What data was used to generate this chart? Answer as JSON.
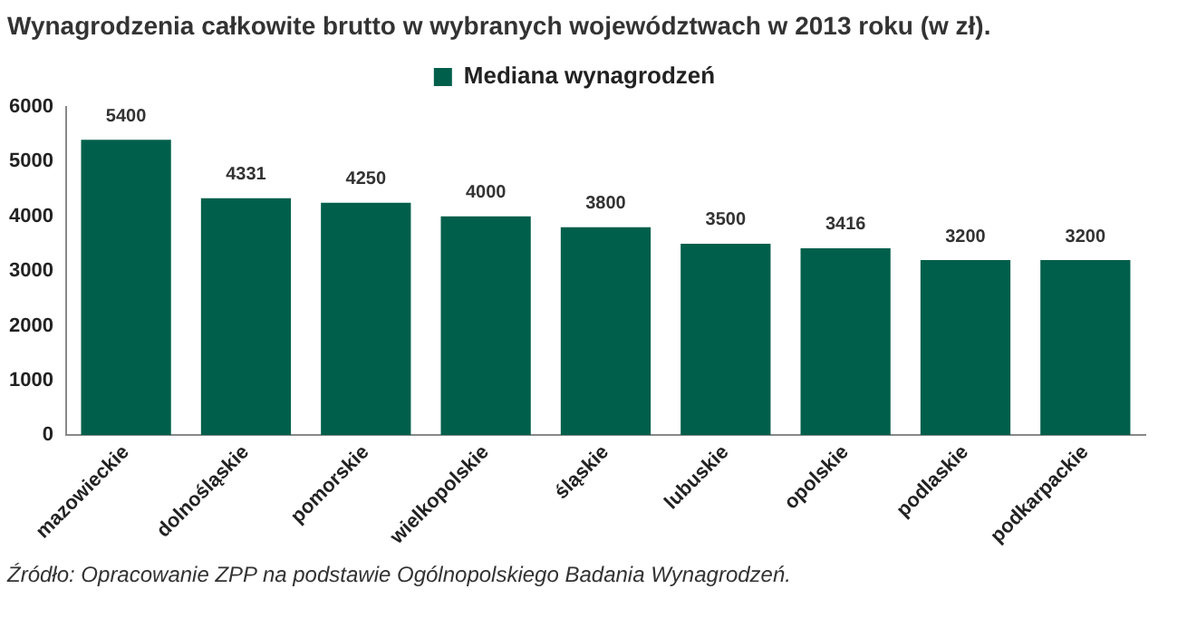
{
  "chart_data": {
    "type": "bar",
    "title": "Wynagrodzenia całkowite brutto w wybranych województwach w 2013 roku (w zł).",
    "categories": [
      "mazowieckie",
      "dolnośląskie",
      "pomorskie",
      "wielkopolskie",
      "śląskie",
      "lubuskie",
      "opolskie",
      "podlaskie",
      "podkarpackie"
    ],
    "series": [
      {
        "name": "Mediana wynagrodzeń",
        "color": "#005f4b",
        "values": [
          5400,
          4331,
          4250,
          4000,
          3800,
          3500,
          3416,
          3200,
          3200
        ]
      }
    ],
    "ylim": [
      0,
      6000
    ],
    "yticks": [
      0,
      1000,
      2000,
      3000,
      4000,
      5000,
      6000
    ],
    "grid": false,
    "legend": "top",
    "data_labels": true,
    "annotations": [
      "Źródło: Opracowanie ZPP na podstawie Ogólnopolskiego Badania Wynagrodzeń."
    ]
  }
}
